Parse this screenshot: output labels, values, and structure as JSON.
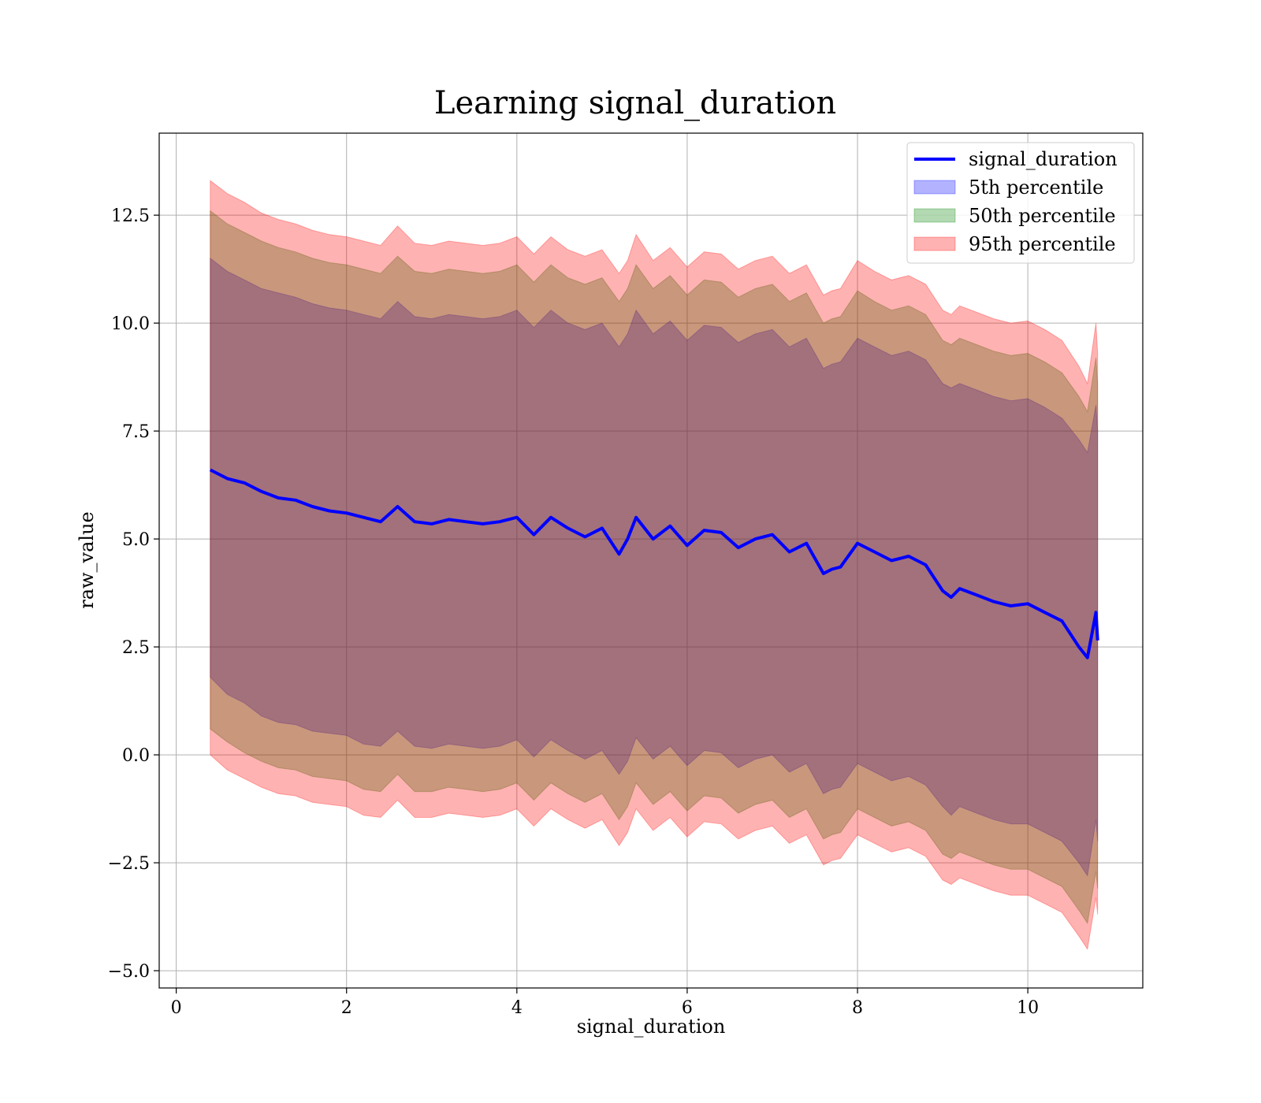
{
  "chart_data": {
    "type": "area",
    "title": "Learning signal_duration",
    "xlabel": "signal_duration",
    "ylabel": "raw_value",
    "xlim": [
      -0.2,
      11.35
    ],
    "ylim": [
      -5.4,
      14.4
    ],
    "xticks": [
      0,
      2,
      4,
      6,
      8,
      10
    ],
    "xtick_labels": [
      "0",
      "2",
      "4",
      "6",
      "8",
      "10"
    ],
    "yticks": [
      -5.0,
      -2.5,
      0.0,
      2.5,
      5.0,
      7.5,
      10.0,
      12.5
    ],
    "ytick_labels": [
      "−5.0",
      "−2.5",
      "0.0",
      "2.5",
      "5.0",
      "7.5",
      "10.0",
      "12.5"
    ],
    "grid": true,
    "legend_position": "top-right",
    "x": [
      0.4,
      0.6,
      0.8,
      1.0,
      1.2,
      1.4,
      1.6,
      1.8,
      2.0,
      2.2,
      2.4,
      2.6,
      2.8,
      3.0,
      3.2,
      3.4,
      3.6,
      3.8,
      4.0,
      4.2,
      4.4,
      4.6,
      4.8,
      5.0,
      5.2,
      5.3,
      5.4,
      5.6,
      5.8,
      6.0,
      6.2,
      6.4,
      6.6,
      6.8,
      7.0,
      7.2,
      7.4,
      7.6,
      7.7,
      7.8,
      8.0,
      8.2,
      8.4,
      8.6,
      8.8,
      9.0,
      9.1,
      9.2,
      9.4,
      9.6,
      9.8,
      10.0,
      10.2,
      10.4,
      10.6,
      10.7,
      10.8,
      10.82
    ],
    "series": [
      {
        "name": "signal_duration",
        "kind": "line",
        "color": "#0000ff",
        "values": [
          6.6,
          6.4,
          6.3,
          6.1,
          5.95,
          5.9,
          5.75,
          5.65,
          5.6,
          5.5,
          5.4,
          5.75,
          5.4,
          5.35,
          5.45,
          5.4,
          5.35,
          5.4,
          5.5,
          5.1,
          5.5,
          5.25,
          5.05,
          5.25,
          4.65,
          5.0,
          5.5,
          5.0,
          5.3,
          4.85,
          5.2,
          5.15,
          4.8,
          5.0,
          5.1,
          4.7,
          4.9,
          4.2,
          4.3,
          4.35,
          4.9,
          4.7,
          4.5,
          4.6,
          4.4,
          3.8,
          3.65,
          3.85,
          3.7,
          3.55,
          3.45,
          3.5,
          3.3,
          3.1,
          2.5,
          2.25,
          3.3,
          2.65
        ]
      },
      {
        "name": "5th percentile",
        "kind": "band",
        "color": "#0000ff",
        "lower": [
          1.8,
          1.4,
          1.2,
          0.9,
          0.75,
          0.7,
          0.55,
          0.5,
          0.45,
          0.25,
          0.2,
          0.55,
          0.2,
          0.15,
          0.25,
          0.2,
          0.15,
          0.2,
          0.35,
          -0.05,
          0.35,
          0.1,
          -0.1,
          0.1,
          -0.45,
          -0.15,
          0.4,
          -0.1,
          0.2,
          -0.25,
          0.1,
          0.05,
          -0.3,
          -0.1,
          0.0,
          -0.4,
          -0.2,
          -0.9,
          -0.8,
          -0.75,
          -0.2,
          -0.4,
          -0.6,
          -0.5,
          -0.7,
          -1.2,
          -1.4,
          -1.2,
          -1.35,
          -1.5,
          -1.6,
          -1.6,
          -1.8,
          -2.0,
          -2.5,
          -2.8,
          -1.5,
          -2.0
        ],
        "upper": [
          11.5,
          11.2,
          11.0,
          10.8,
          10.7,
          10.6,
          10.45,
          10.35,
          10.3,
          10.2,
          10.1,
          10.5,
          10.15,
          10.1,
          10.2,
          10.15,
          10.1,
          10.15,
          10.3,
          9.9,
          10.3,
          10.0,
          9.85,
          10.0,
          9.45,
          9.75,
          10.3,
          9.75,
          10.05,
          9.6,
          9.95,
          9.9,
          9.55,
          9.75,
          9.85,
          9.45,
          9.65,
          8.95,
          9.05,
          9.1,
          9.65,
          9.45,
          9.25,
          9.35,
          9.15,
          8.6,
          8.5,
          8.6,
          8.45,
          8.3,
          8.2,
          8.25,
          8.05,
          7.8,
          7.3,
          7.0,
          8.1,
          7.5
        ]
      },
      {
        "name": "50th percentile",
        "kind": "band",
        "color": "#008000",
        "lower": [
          0.6,
          0.3,
          0.05,
          -0.15,
          -0.3,
          -0.35,
          -0.5,
          -0.55,
          -0.6,
          -0.8,
          -0.85,
          -0.45,
          -0.85,
          -0.85,
          -0.75,
          -0.8,
          -0.85,
          -0.8,
          -0.65,
          -1.05,
          -0.65,
          -0.9,
          -1.1,
          -0.9,
          -1.5,
          -1.2,
          -0.65,
          -1.15,
          -0.85,
          -1.3,
          -0.95,
          -1.0,
          -1.35,
          -1.15,
          -1.05,
          -1.45,
          -1.25,
          -1.95,
          -1.85,
          -1.8,
          -1.25,
          -1.45,
          -1.65,
          -1.55,
          -1.75,
          -2.3,
          -2.4,
          -2.25,
          -2.4,
          -2.55,
          -2.65,
          -2.65,
          -2.85,
          -3.05,
          -3.6,
          -3.9,
          -2.7,
          -3.1
        ],
        "upper": [
          12.6,
          12.3,
          12.1,
          11.9,
          11.75,
          11.65,
          11.5,
          11.4,
          11.35,
          11.25,
          11.15,
          11.55,
          11.2,
          11.15,
          11.25,
          11.2,
          11.15,
          11.2,
          11.35,
          10.95,
          11.35,
          11.05,
          10.9,
          11.05,
          10.5,
          10.8,
          11.35,
          10.8,
          11.1,
          10.65,
          11.0,
          10.95,
          10.6,
          10.8,
          10.9,
          10.5,
          10.7,
          10.0,
          10.1,
          10.15,
          10.75,
          10.5,
          10.3,
          10.4,
          10.2,
          9.6,
          9.5,
          9.65,
          9.5,
          9.35,
          9.25,
          9.3,
          9.1,
          8.85,
          8.3,
          7.95,
          9.2,
          8.6
        ]
      },
      {
        "name": "95th percentile",
        "kind": "band",
        "color": "#ff0000",
        "lower": [
          0.0,
          -0.35,
          -0.55,
          -0.75,
          -0.9,
          -0.95,
          -1.1,
          -1.15,
          -1.2,
          -1.4,
          -1.45,
          -1.05,
          -1.45,
          -1.45,
          -1.35,
          -1.4,
          -1.45,
          -1.4,
          -1.25,
          -1.65,
          -1.25,
          -1.5,
          -1.7,
          -1.5,
          -2.1,
          -1.8,
          -1.25,
          -1.75,
          -1.45,
          -1.9,
          -1.55,
          -1.6,
          -1.95,
          -1.75,
          -1.65,
          -2.05,
          -1.85,
          -2.55,
          -2.45,
          -2.4,
          -1.85,
          -2.05,
          -2.25,
          -2.15,
          -2.35,
          -2.9,
          -3.0,
          -2.85,
          -3.0,
          -3.15,
          -3.25,
          -3.25,
          -3.45,
          -3.65,
          -4.2,
          -4.5,
          -3.3,
          -3.7
        ],
        "upper": [
          13.3,
          13.0,
          12.8,
          12.55,
          12.4,
          12.3,
          12.15,
          12.05,
          12.0,
          11.9,
          11.8,
          12.25,
          11.85,
          11.8,
          11.9,
          11.85,
          11.8,
          11.85,
          12.0,
          11.6,
          12.0,
          11.7,
          11.55,
          11.7,
          11.15,
          11.45,
          12.05,
          11.45,
          11.75,
          11.3,
          11.65,
          11.6,
          11.25,
          11.45,
          11.55,
          11.15,
          11.35,
          10.65,
          10.75,
          10.8,
          11.45,
          11.2,
          11.0,
          11.1,
          10.9,
          10.3,
          10.2,
          10.4,
          10.25,
          10.1,
          10.0,
          10.05,
          9.85,
          9.6,
          9.0,
          8.6,
          10.0,
          9.3
        ]
      }
    ]
  }
}
